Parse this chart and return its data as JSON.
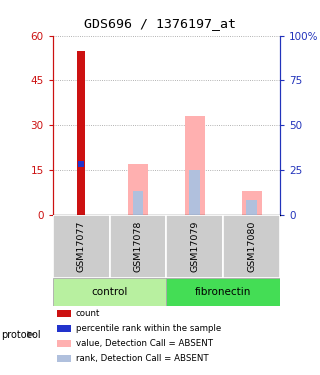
{
  "title": "GDS696 / 1376197_at",
  "samples": [
    "GSM17077",
    "GSM17078",
    "GSM17079",
    "GSM17080"
  ],
  "count_values": [
    55,
    0,
    0,
    0
  ],
  "percentile_values": [
    17,
    0,
    0,
    0
  ],
  "absent_value_bars": [
    0,
    17,
    33,
    8
  ],
  "absent_rank_bars": [
    0,
    8,
    15,
    5
  ],
  "groups": [
    "control",
    "control",
    "fibronectin",
    "fibronectin"
  ],
  "ylim_left": [
    0,
    60
  ],
  "ylim_right": [
    0,
    100
  ],
  "yticks_left": [
    0,
    15,
    30,
    45,
    60
  ],
  "yticks_right": [
    0,
    25,
    50,
    75,
    100
  ],
  "color_count": "#cc1111",
  "color_percentile": "#2233cc",
  "color_absent_value": "#ffb0b0",
  "color_absent_rank": "#b0c0dd",
  "color_control": "#b8f0a0",
  "color_fibronectin": "#44dd55",
  "color_axis_left": "#cc1111",
  "color_axis_right": "#2233bb",
  "bar_width": 0.35,
  "background_color": "#ffffff",
  "plot_bg": "#ffffff",
  "grid_color": "#888888",
  "sample_label_bg": "#cccccc"
}
